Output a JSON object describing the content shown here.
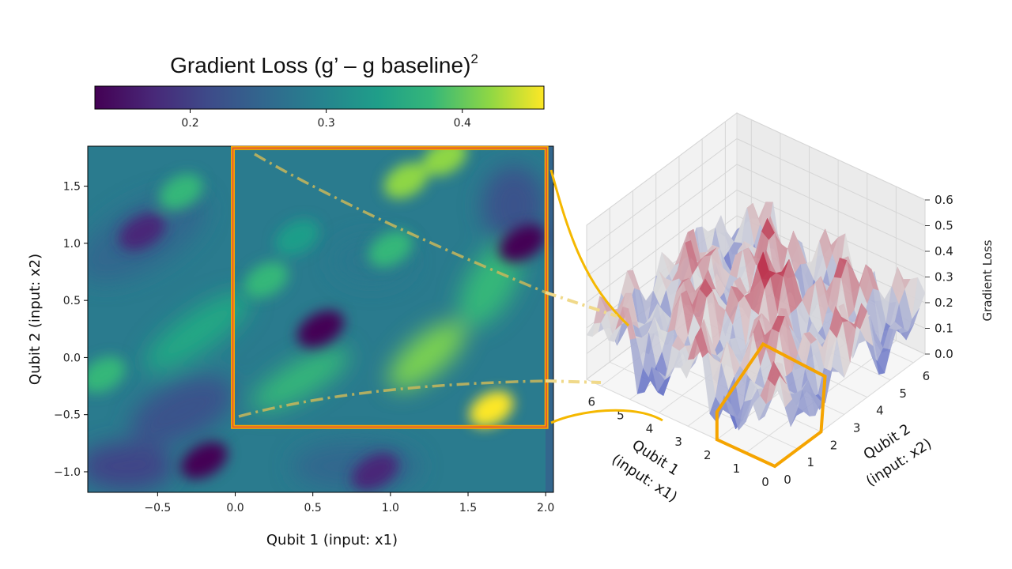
{
  "title": {
    "main": "Gradient Loss (g’ – g baseline)",
    "superscript": "2"
  },
  "colorbar": {
    "ticks": [
      "0.2",
      "0.3",
      "0.4"
    ],
    "tick_values": [
      0.2,
      0.3,
      0.4
    ],
    "range": [
      0.13,
      0.46
    ],
    "colormap": "viridis"
  },
  "chart_data": [
    {
      "type": "heatmap",
      "xlabel": "Qubit 1 (input: x1)",
      "ylabel": "Qubit 2 (input: x2)",
      "xlim": [
        -0.95,
        2.05
      ],
      "ylim": [
        -1.18,
        1.85
      ],
      "x_ticks": [
        "−0.5",
        "0.0",
        "0.5",
        "1.0",
        "1.5",
        "2.0"
      ],
      "x_tick_values": [
        -0.5,
        0.0,
        0.5,
        1.0,
        1.5,
        2.0
      ],
      "y_ticks": [
        "−1.0",
        "−0.5",
        "0.0",
        "0.5",
        "1.0",
        "1.5"
      ],
      "y_tick_values": [
        -1.0,
        -0.5,
        0.0,
        0.5,
        1.0,
        1.5
      ],
      "value_range": [
        0.13,
        0.46
      ],
      "bright_spots": [
        {
          "x": 1.1,
          "y": 1.55,
          "value": 0.44
        },
        {
          "x": 1.35,
          "y": 1.75,
          "value": 0.45
        },
        {
          "x": 0.2,
          "y": 0.68,
          "value": 0.42
        },
        {
          "x": -0.35,
          "y": 1.45,
          "value": 0.42
        },
        {
          "x": 1.65,
          "y": -0.45,
          "value": 0.46
        },
        {
          "x": 1.0,
          "y": 0.95,
          "value": 0.38
        },
        {
          "x": 0.4,
          "y": 1.05,
          "value": 0.36
        },
        {
          "x": -0.85,
          "y": -0.15,
          "value": 0.38
        }
      ],
      "dark_spots": [
        {
          "x": 0.55,
          "y": 0.25,
          "value": 0.13
        },
        {
          "x": -0.6,
          "y": 1.1,
          "value": 0.18
        },
        {
          "x": 1.85,
          "y": 1.0,
          "value": 0.17
        },
        {
          "x": -0.2,
          "y": -0.9,
          "value": 0.17
        },
        {
          "x": 0.9,
          "y": -1.0,
          "value": 0.2
        }
      ],
      "zoom_box": {
        "x": [
          0.0,
          2.0
        ],
        "y": [
          -0.58,
          1.82
        ]
      }
    },
    {
      "type": "surface3d",
      "xlabel": "Qubit 1\n(input: x1)",
      "ylabel": "Qubit 2\n(input: x2)",
      "zlabel": "Gradient Loss",
      "x_ticks": [
        "0",
        "1",
        "2",
        "3",
        "4",
        "5",
        "6"
      ],
      "y_ticks": [
        "0",
        "1",
        "2",
        "3",
        "4",
        "5",
        "6"
      ],
      "z_ticks": [
        "0.0",
        "0.1",
        "0.2",
        "0.3",
        "0.4",
        "0.5",
        "0.6"
      ],
      "xlim": [
        0,
        6.5
      ],
      "ylim": [
        0,
        6.5
      ],
      "zlim": [
        0,
        0.6
      ],
      "colormap": "coolwarm",
      "highlight_region": {
        "x": [
          0,
          2
        ],
        "y": [
          0,
          2
        ]
      }
    }
  ]
}
